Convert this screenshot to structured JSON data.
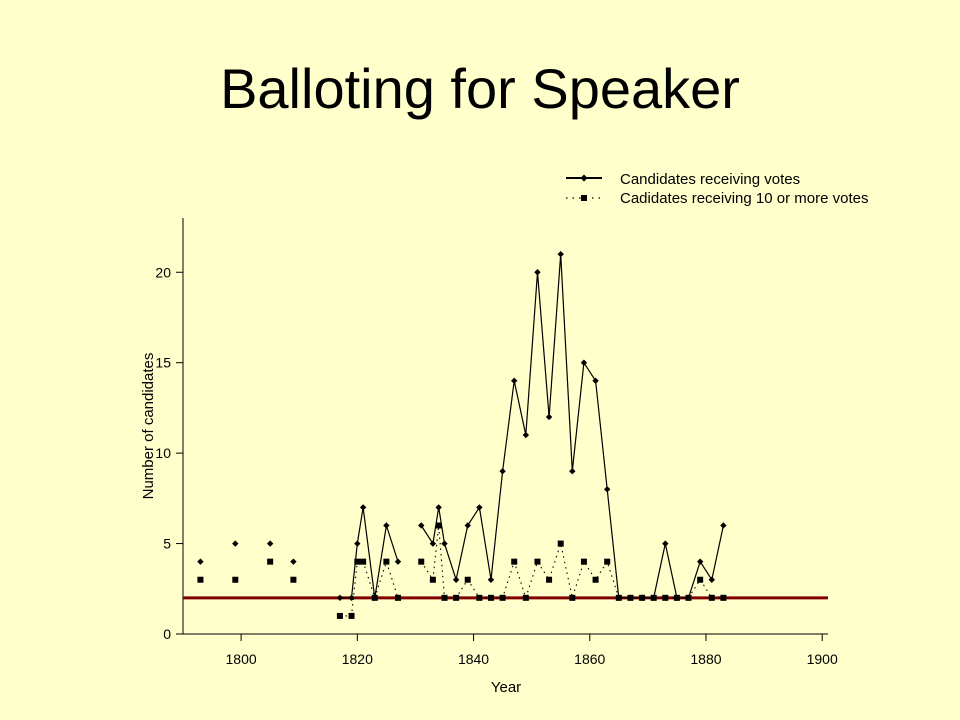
{
  "slide": {
    "title": "Balloting for Speaker"
  },
  "chart_data": {
    "type": "line",
    "xlabel": "Year",
    "ylabel": "Number of candidates",
    "xlim": [
      1790,
      1901
    ],
    "ylim": [
      0,
      23
    ],
    "xticks": [
      1800,
      1820,
      1840,
      1860,
      1880,
      1900
    ],
    "yticks": [
      0,
      5,
      10,
      15,
      20
    ],
    "legend_position": "top-right",
    "reference_line": {
      "y": 2,
      "color": "#800000"
    },
    "series": [
      {
        "name": "Candidates receiving votes",
        "style": "solid-diamond",
        "segments": [
          [
            [
              1793,
              4
            ]
          ],
          [
            [
              1799,
              5
            ]
          ],
          [
            [
              1805,
              5
            ]
          ],
          [
            [
              1809,
              4
            ]
          ],
          [
            [
              1817,
              2
            ],
            [
              1819,
              2
            ],
            [
              1820,
              5
            ],
            [
              1821,
              7
            ],
            [
              1823,
              2
            ],
            [
              1825,
              6
            ],
            [
              1827,
              4
            ]
          ],
          [
            [
              1831,
              6
            ],
            [
              1833,
              5
            ],
            [
              1834,
              7
            ],
            [
              1835,
              5
            ],
            [
              1837,
              3
            ],
            [
              1839,
              6
            ],
            [
              1841,
              7
            ],
            [
              1843,
              3
            ],
            [
              1845,
              9
            ],
            [
              1847,
              14
            ],
            [
              1849,
              11
            ],
            [
              1851,
              20
            ],
            [
              1853,
              12
            ],
            [
              1855,
              21
            ],
            [
              1857,
              9
            ],
            [
              1859,
              15
            ],
            [
              1861,
              14
            ],
            [
              1863,
              8
            ],
            [
              1865,
              2
            ],
            [
              1867,
              2
            ],
            [
              1869,
              2
            ],
            [
              1871,
              2
            ],
            [
              1873,
              5
            ],
            [
              1875,
              2
            ],
            [
              1877,
              2
            ],
            [
              1879,
              4
            ],
            [
              1881,
              3
            ],
            [
              1883,
              6
            ]
          ]
        ]
      },
      {
        "name": "Cadidates receiving 10 or more votes",
        "style": "dotted-square",
        "segments": [
          [
            [
              1793,
              3
            ]
          ],
          [
            [
              1799,
              3
            ]
          ],
          [
            [
              1805,
              4
            ]
          ],
          [
            [
              1809,
              3
            ]
          ],
          [
            [
              1817,
              1
            ],
            [
              1819,
              1
            ],
            [
              1820,
              4
            ],
            [
              1821,
              4
            ],
            [
              1823,
              2
            ],
            [
              1825,
              4
            ],
            [
              1827,
              2
            ]
          ],
          [
            [
              1831,
              4
            ],
            [
              1833,
              3
            ],
            [
              1834,
              6
            ],
            [
              1835,
              2
            ],
            [
              1837,
              2
            ],
            [
              1839,
              3
            ],
            [
              1841,
              2
            ],
            [
              1843,
              2
            ],
            [
              1845,
              2
            ],
            [
              1847,
              4
            ],
            [
              1849,
              2
            ],
            [
              1851,
              4
            ],
            [
              1853,
              3
            ],
            [
              1855,
              5
            ],
            [
              1857,
              2
            ],
            [
              1859,
              4
            ],
            [
              1861,
              3
            ],
            [
              1863,
              4
            ],
            [
              1865,
              2
            ],
            [
              1867,
              2
            ],
            [
              1869,
              2
            ],
            [
              1871,
              2
            ],
            [
              1873,
              2
            ],
            [
              1875,
              2
            ],
            [
              1877,
              2
            ],
            [
              1879,
              3
            ],
            [
              1881,
              2
            ],
            [
              1883,
              2
            ]
          ]
        ]
      }
    ]
  }
}
